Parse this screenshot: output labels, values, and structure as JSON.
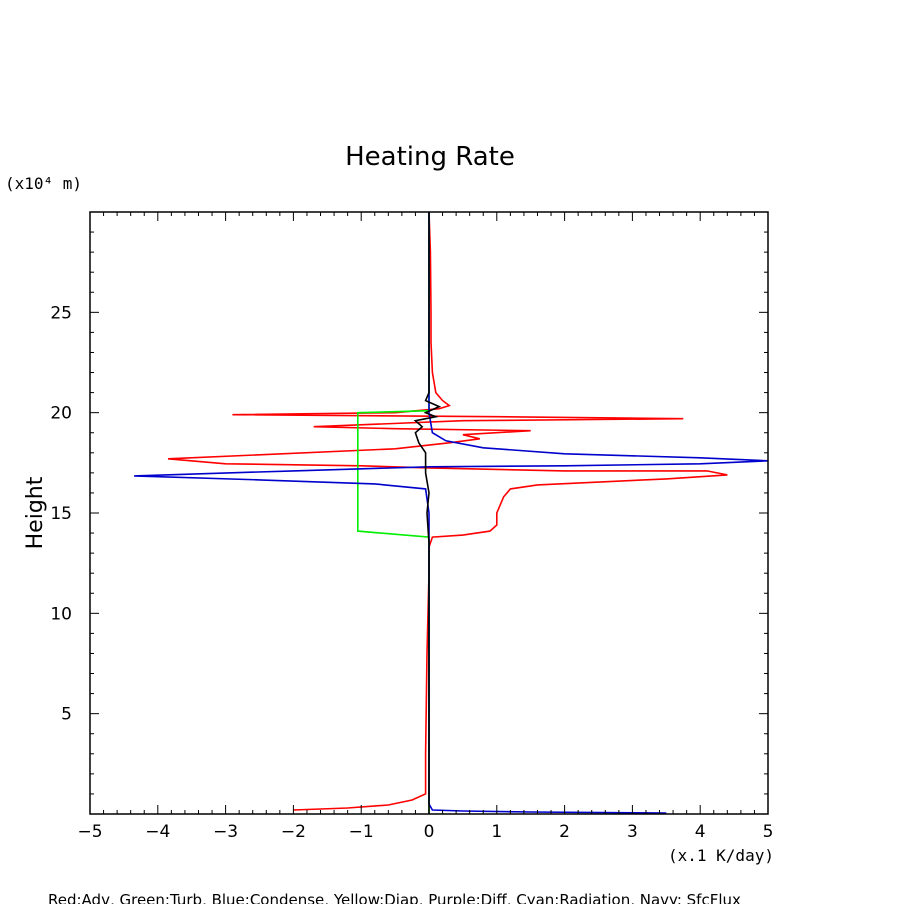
{
  "chart_data": {
    "type": "line",
    "title": "Heating Rate",
    "xlabel": "(x.1 K/day)",
    "ylabel": "Height",
    "y_unit_label": "(x10⁴ m)",
    "xlim": [
      -5,
      5
    ],
    "ylim": [
      0,
      30
    ],
    "x_ticks": [
      -5,
      -4,
      -3,
      -2,
      -1,
      0,
      1,
      2,
      3,
      4,
      5
    ],
    "x_tick_labels": [
      "−5",
      "−4",
      "−3",
      "−2",
      "−1",
      "0",
      "1",
      "2",
      "3",
      "4",
      "5"
    ],
    "y_ticks": [
      5,
      10,
      15,
      20,
      25
    ],
    "y_tick_labels": [
      "5",
      "10",
      "15",
      "20",
      "25"
    ],
    "grid": false,
    "legend_text": "Red:Adv, Green:Turb, Blue:Condense, Yellow:Diap, Purple:Diff, Cyan:Radiation, Navy: SfcFlux",
    "series": [
      {
        "color": "#ff0000",
        "points": [
          [
            -2.0,
            0.2
          ],
          [
            -1.2,
            0.3
          ],
          [
            -0.6,
            0.45
          ],
          [
            -0.25,
            0.7
          ],
          [
            -0.05,
            1.0
          ],
          [
            -0.05,
            3.0
          ],
          [
            -0.03,
            8.0
          ],
          [
            0.0,
            12.0
          ],
          [
            0.0,
            13.3
          ],
          [
            0.05,
            13.8
          ],
          [
            0.5,
            13.9
          ],
          [
            0.9,
            14.1
          ],
          [
            1.0,
            14.4
          ],
          [
            1.0,
            15.0
          ],
          [
            1.1,
            15.8
          ],
          [
            1.2,
            16.2
          ],
          [
            1.6,
            16.4
          ],
          [
            3.5,
            16.7
          ],
          [
            4.4,
            16.9
          ],
          [
            4.1,
            17.1
          ],
          [
            2.0,
            17.1
          ],
          [
            0.0,
            17.25
          ],
          [
            -1.0,
            17.35
          ],
          [
            -3.0,
            17.45
          ],
          [
            -3.85,
            17.7
          ],
          [
            -2.5,
            17.9
          ],
          [
            -0.5,
            18.2
          ],
          [
            0.3,
            18.5
          ],
          [
            0.75,
            18.7
          ],
          [
            0.5,
            18.9
          ],
          [
            1.5,
            19.1
          ],
          [
            -0.5,
            19.2
          ],
          [
            -1.7,
            19.3
          ],
          [
            0.5,
            19.6
          ],
          [
            3.75,
            19.7
          ],
          [
            1.0,
            19.8
          ],
          [
            -2.9,
            19.9
          ],
          [
            -0.5,
            20.0
          ],
          [
            0.15,
            20.2
          ],
          [
            0.3,
            20.35
          ],
          [
            0.2,
            20.6
          ],
          [
            0.1,
            21.0
          ],
          [
            0.05,
            22.0
          ],
          [
            0.03,
            23.5
          ],
          [
            0.03,
            25.0
          ],
          [
            0.02,
            28.0
          ],
          [
            0.0,
            30.0
          ]
        ]
      },
      {
        "color": "#00ee00",
        "points": [
          [
            0.0,
            0.0
          ],
          [
            0.0,
            13.8
          ],
          [
            -1.05,
            14.1
          ],
          [
            -1.05,
            20.0
          ],
          [
            0.0,
            20.1
          ],
          [
            0.0,
            30.0
          ]
        ]
      },
      {
        "color": "#0000cc",
        "points": [
          [
            3.5,
            0.05
          ],
          [
            1.5,
            0.1
          ],
          [
            0.5,
            0.15
          ],
          [
            0.05,
            0.2
          ],
          [
            0.0,
            0.5
          ],
          [
            0.0,
            15.0
          ],
          [
            -0.05,
            16.2
          ],
          [
            -0.8,
            16.45
          ],
          [
            -2.5,
            16.65
          ],
          [
            -4.35,
            16.85
          ],
          [
            -2.0,
            17.1
          ],
          [
            0.0,
            17.3
          ],
          [
            2.0,
            17.35
          ],
          [
            4.0,
            17.45
          ],
          [
            5.0,
            17.6
          ],
          [
            4.0,
            17.75
          ],
          [
            2.0,
            17.95
          ],
          [
            0.8,
            18.25
          ],
          [
            0.25,
            18.6
          ],
          [
            0.05,
            19.0
          ],
          [
            0.0,
            20.0
          ],
          [
            0.0,
            30.0
          ]
        ]
      },
      {
        "color": "#000000",
        "points": [
          [
            0.0,
            0.0
          ],
          [
            0.0,
            13.5
          ],
          [
            -0.03,
            15.0
          ],
          [
            0.0,
            16.0
          ],
          [
            -0.05,
            17.0
          ],
          [
            -0.05,
            18.0
          ],
          [
            -0.15,
            18.5
          ],
          [
            -0.2,
            19.0
          ],
          [
            -0.1,
            19.3
          ],
          [
            -0.2,
            19.6
          ],
          [
            0.1,
            19.8
          ],
          [
            -0.05,
            20.0
          ],
          [
            0.15,
            20.3
          ],
          [
            -0.05,
            20.6
          ],
          [
            0.0,
            21.0
          ],
          [
            0.0,
            30.0
          ]
        ]
      }
    ]
  }
}
